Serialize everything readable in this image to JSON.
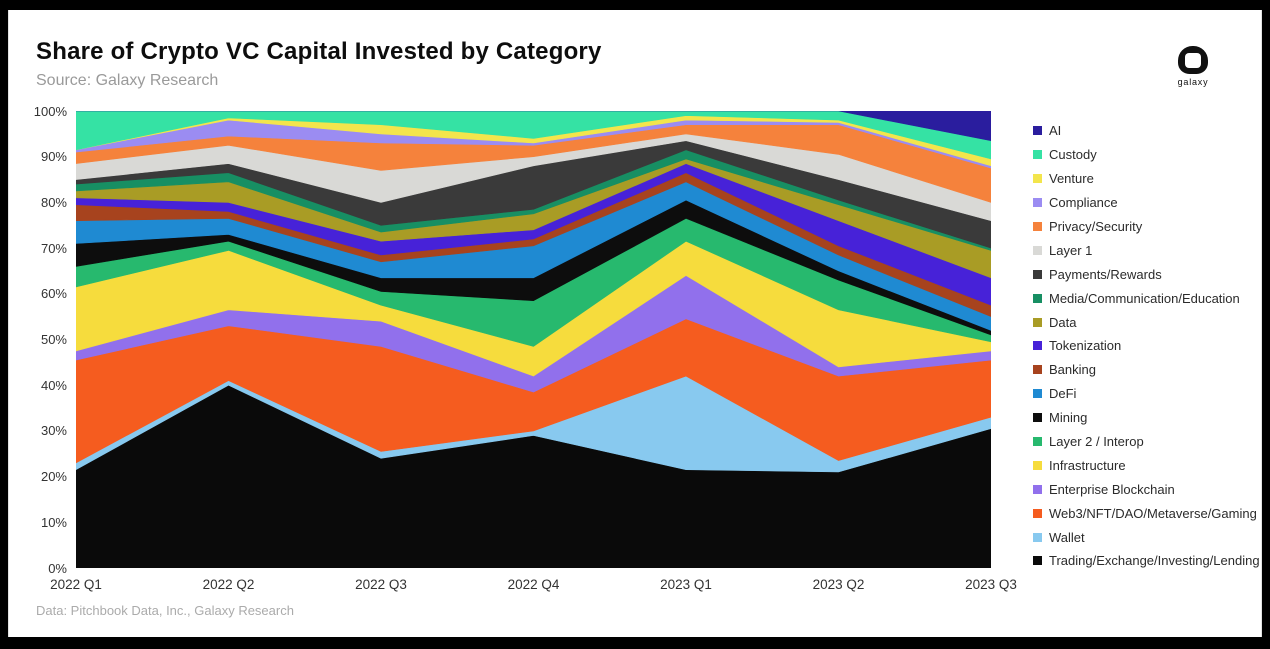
{
  "page": {
    "title": "Share of Crypto VC Capital Invested by Category",
    "subtitle": "Source: Galaxy Research",
    "footer": "Data: Pitchbook Data, Inc., Galaxy Research",
    "logo_text": "galaxy"
  },
  "chart_data": {
    "type": "area",
    "stacked": true,
    "unit": "percent",
    "title": "Share of Crypto VC Capital Invested by Category",
    "x": [
      "2022 Q1",
      "2022 Q2",
      "2022 Q3",
      "2022 Q4",
      "2023 Q1",
      "2023 Q2",
      "2023 Q3"
    ],
    "y_ticks": [
      "0%",
      "10%",
      "20%",
      "30%",
      "40%",
      "50%",
      "60%",
      "70%",
      "80%",
      "90%",
      "100%"
    ],
    "ylim": [
      0,
      100
    ],
    "grid": false,
    "legend_position": "right",
    "series_note": "Series listed in legend order; stack order on chart is bottom-up from the last item (Trading) to the first (AI). Values are % of quarterly VC capital.",
    "series": [
      {
        "name": "AI",
        "color": "#2a1d9e",
        "values": [
          0,
          0,
          0,
          0,
          0,
          0,
          6.5
        ]
      },
      {
        "name": "Custody",
        "color": "#35e2a4",
        "values": [
          8.5,
          1.5,
          3,
          6,
          1,
          2,
          4
        ]
      },
      {
        "name": "Venture",
        "color": "#f3e54c",
        "values": [
          0,
          0.5,
          2,
          1,
          1,
          0.5,
          1.5
        ]
      },
      {
        "name": "Compliance",
        "color": "#9b8cf2",
        "values": [
          0.5,
          3.5,
          2,
          0.5,
          1,
          0.5,
          0.5
        ]
      },
      {
        "name": "Privacy/Security",
        "color": "#f5823c",
        "values": [
          2.5,
          2,
          6,
          2.5,
          2,
          6.5,
          7.5
        ]
      },
      {
        "name": "Layer 1",
        "color": "#d9d9d6",
        "values": [
          3.5,
          4,
          7,
          2,
          1.5,
          5.5,
          4
        ]
      },
      {
        "name": "Payments/Rewards",
        "color": "#3a3a3a",
        "values": [
          1,
          2,
          5,
          9.5,
          2,
          4.5,
          6
        ]
      },
      {
        "name": "Media/Communication/Education",
        "color": "#178f63",
        "values": [
          1.5,
          2,
          1.5,
          1,
          2,
          1,
          0.5
        ]
      },
      {
        "name": "Data",
        "color": "#a99c25",
        "values": [
          1.5,
          4.5,
          2,
          3.5,
          1,
          3.5,
          6
        ]
      },
      {
        "name": "Tokenization",
        "color": "#4722d8",
        "values": [
          1.5,
          2,
          3,
          2,
          2,
          5.5,
          6
        ]
      },
      {
        "name": "Banking",
        "color": "#a7431e",
        "values": [
          3.5,
          1.5,
          1.5,
          1.5,
          2,
          2,
          2.5
        ]
      },
      {
        "name": "DeFi",
        "color": "#1f8ad2",
        "values": [
          5,
          3.5,
          3.5,
          7,
          4,
          3.5,
          3
        ]
      },
      {
        "name": "Mining",
        "color": "#0d0d0d",
        "values": [
          5,
          1.5,
          3,
          5,
          4,
          2,
          1
        ]
      },
      {
        "name": "Layer 2 / Interop",
        "color": "#27b96e",
        "values": [
          4.5,
          2,
          3,
          10,
          5,
          6.5,
          1.5
        ]
      },
      {
        "name": "Infrastructure",
        "color": "#f6dc3d",
        "values": [
          14,
          13,
          3.5,
          6.5,
          7.5,
          12.5,
          2
        ]
      },
      {
        "name": "Enterprise Blockchain",
        "color": "#9170ec",
        "values": [
          2,
          3.5,
          5.5,
          3.5,
          9.5,
          2,
          2
        ]
      },
      {
        "name": "Web3/NFT/DAO/Metaverse/Gaming",
        "color": "#f55c1f",
        "values": [
          22.5,
          12,
          23,
          8.5,
          12.5,
          18.5,
          12.5
        ]
      },
      {
        "name": "Wallet",
        "color": "#88c9ef",
        "values": [
          1.5,
          1,
          1.5,
          1,
          20.5,
          2.5,
          2.5
        ]
      },
      {
        "name": "Trading/Exchange/Investing/Lending",
        "color": "#0a0a0a",
        "values": [
          21.5,
          40,
          24,
          29,
          21.5,
          21,
          30.5
        ]
      }
    ]
  }
}
